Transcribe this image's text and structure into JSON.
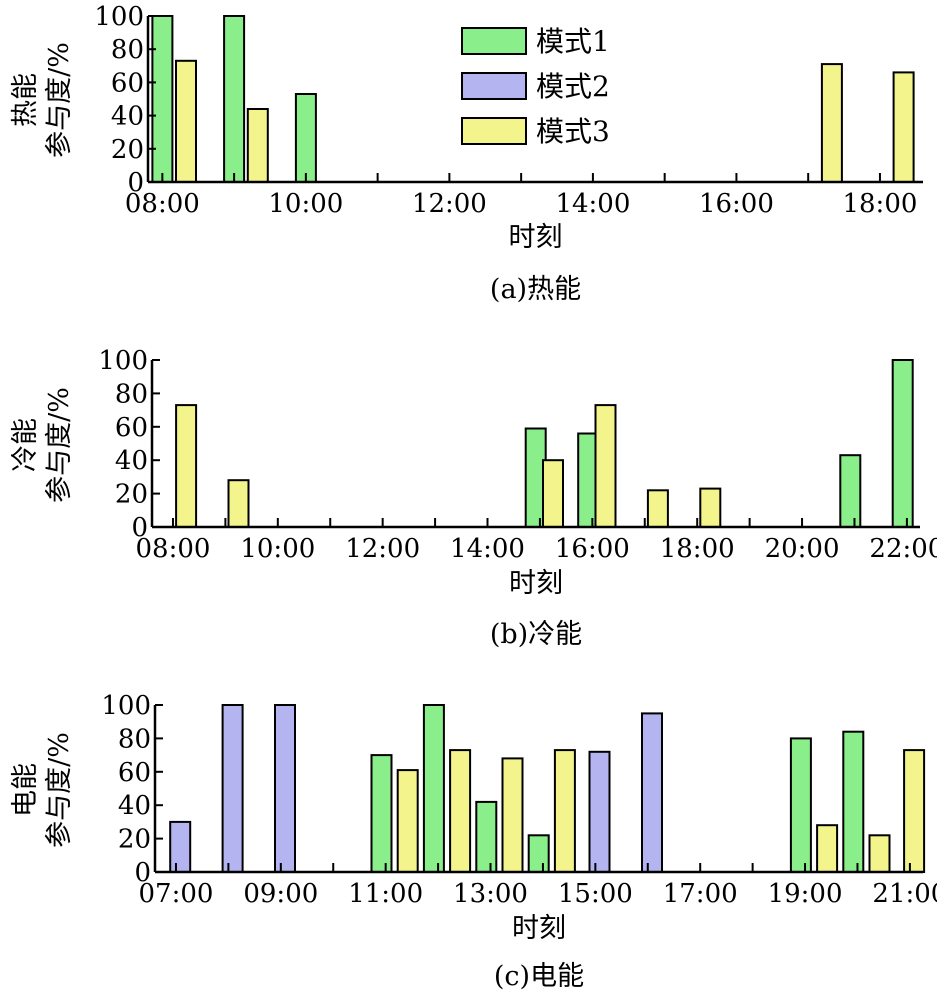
{
  "legend": {
    "items": [
      {
        "label": "模式1",
        "color": "#8aef8a"
      },
      {
        "label": "模式2",
        "color": "#b4b4f0"
      },
      {
        "label": "模式3",
        "color": "#f4f48c"
      }
    ]
  },
  "chart_data": [
    {
      "type": "bar",
      "caption": "(a)热能",
      "xlabel": "时刻",
      "ylabel": [
        "热能",
        "参与度/%"
      ],
      "ylim": [
        0,
        100
      ],
      "yticks": [
        "0",
        "20",
        "40",
        "60",
        "80",
        "100"
      ],
      "x_tick_labels": [
        "08:00",
        "10:00",
        "12:00",
        "14:00",
        "16:00",
        "18:00"
      ],
      "x_range_hours": [
        7.8,
        18.6
      ],
      "series": [
        {
          "name": "模式1",
          "points": [
            {
              "t": 8.0,
              "value": 100
            },
            {
              "t": 9.0,
              "value": 100
            },
            {
              "t": 10.0,
              "value": 53
            }
          ]
        },
        {
          "name": "模式2",
          "points": []
        },
        {
          "name": "模式3",
          "points": [
            {
              "t": 8.33,
              "value": 73
            },
            {
              "t": 9.33,
              "value": 44
            },
            {
              "t": 17.33,
              "value": 71
            },
            {
              "t": 18.33,
              "value": 66
            }
          ]
        }
      ]
    },
    {
      "type": "bar",
      "caption": "(b)冷能",
      "xlabel": "时刻",
      "ylabel": [
        "冷能",
        "参与度/%"
      ],
      "ylim": [
        0,
        100
      ],
      "yticks": [
        "0",
        "20",
        "40",
        "60",
        "80",
        "100"
      ],
      "x_tick_labels": [
        "08:00",
        "10:00",
        "12:00",
        "14:00",
        "16:00",
        "18:00",
        "20:00",
        "22:00"
      ],
      "x_range_hours": [
        7.6,
        22.25
      ],
      "series": [
        {
          "name": "模式1",
          "points": [
            {
              "t": 14.92,
              "value": 59
            },
            {
              "t": 15.92,
              "value": 56
            },
            {
              "t": 20.92,
              "value": 43
            },
            {
              "t": 21.92,
              "value": 100
            }
          ]
        },
        {
          "name": "模式2",
          "points": []
        },
        {
          "name": "模式3",
          "points": [
            {
              "t": 8.25,
              "value": 73
            },
            {
              "t": 9.25,
              "value": 28
            },
            {
              "t": 15.25,
              "value": 40
            },
            {
              "t": 16.25,
              "value": 73
            },
            {
              "t": 17.25,
              "value": 22
            },
            {
              "t": 18.25,
              "value": 23
            }
          ]
        }
      ]
    },
    {
      "type": "bar",
      "caption": "(c)电能",
      "xlabel": "时刻",
      "ylabel": [
        "电能",
        "参与度/%"
      ],
      "ylim": [
        0,
        100
      ],
      "yticks": [
        "0",
        "20",
        "40",
        "60",
        "80",
        "100"
      ],
      "x_tick_labels": [
        "07:00",
        "09:00",
        "11:00",
        "13:00",
        "15:00",
        "17:00",
        "19:00",
        "21:00"
      ],
      "x_range_hours": [
        6.6,
        21.25
      ],
      "series": [
        {
          "name": "模式1",
          "points": [
            {
              "t": 10.92,
              "value": 70
            },
            {
              "t": 11.92,
              "value": 100
            },
            {
              "t": 12.92,
              "value": 42
            },
            {
              "t": 13.92,
              "value": 22
            },
            {
              "t": 18.92,
              "value": 80
            },
            {
              "t": 19.92,
              "value": 84
            }
          ]
        },
        {
          "name": "模式2",
          "points": [
            {
              "t": 7.08,
              "value": 30
            },
            {
              "t": 8.08,
              "value": 100
            },
            {
              "t": 9.08,
              "value": 100
            },
            {
              "t": 15.08,
              "value": 72
            },
            {
              "t": 16.08,
              "value": 95
            }
          ]
        },
        {
          "name": "模式3",
          "points": [
            {
              "t": 11.42,
              "value": 61
            },
            {
              "t": 12.42,
              "value": 73
            },
            {
              "t": 13.42,
              "value": 68
            },
            {
              "t": 14.42,
              "value": 73
            },
            {
              "t": 19.42,
              "value": 28
            },
            {
              "t": 20.42,
              "value": 22
            },
            {
              "t": 21.08,
              "value": 73
            }
          ]
        }
      ]
    }
  ]
}
